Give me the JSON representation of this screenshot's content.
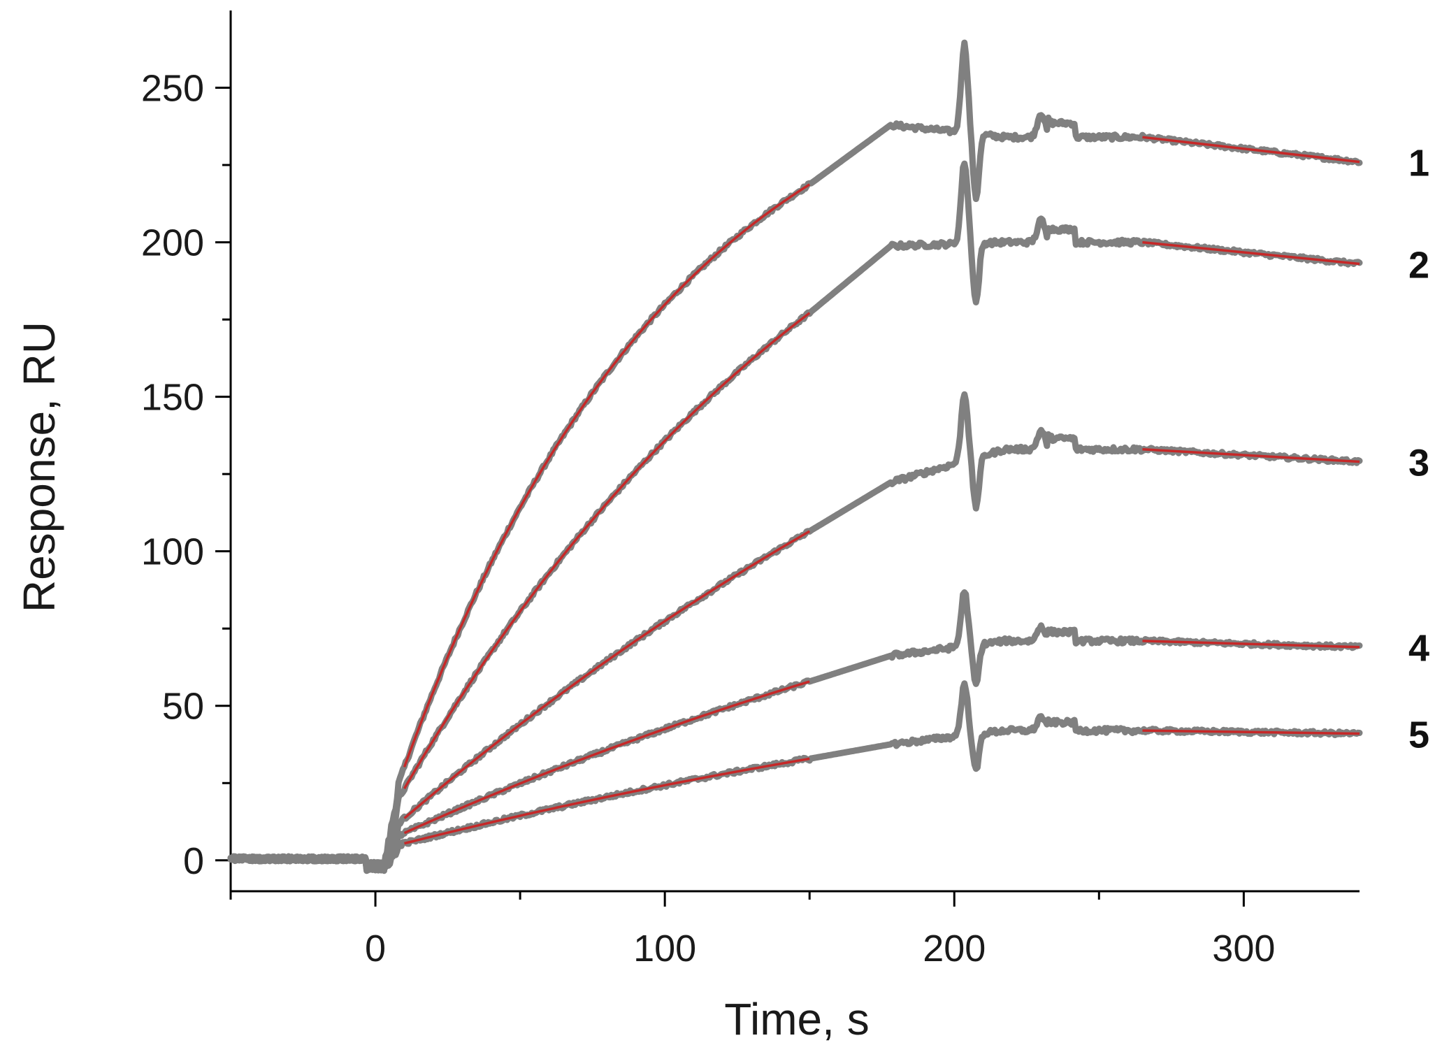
{
  "chart_data": {
    "type": "line",
    "title": "",
    "xlabel": "Time, s",
    "ylabel": "Response, RU",
    "xlim": [
      -50,
      340
    ],
    "ylim": [
      -10,
      275
    ],
    "x_ticks_major": [
      0,
      100,
      200,
      300
    ],
    "x_ticks_minor": [
      -50,
      50,
      150,
      250
    ],
    "y_ticks_major": [
      0,
      50,
      100,
      150,
      200,
      250
    ],
    "y_ticks_minor": [
      25,
      75,
      125,
      175,
      225
    ],
    "grid": false,
    "legend": "none",
    "colors": {
      "data": "#808080",
      "fit": "#c62828",
      "axis": "#000000"
    },
    "injection": {
      "start": 8,
      "association_end": 150,
      "peak_time": 178,
      "dissociation_fit_start": 265,
      "end": 340
    },
    "series": [
      {
        "name": "1",
        "label": "1",
        "start_value": 25,
        "assoc_rmax": 275,
        "assoc_k": 0.0105,
        "level_at_dissociation_start": 234,
        "end_value": 226
      },
      {
        "name": "2",
        "label": "2",
        "start_value": 20,
        "assoc_rmax": 300,
        "assoc_k": 0.0058,
        "level_at_dissociation_start": 200,
        "end_value": 193
      },
      {
        "name": "3",
        "label": "3",
        "start_value": 12,
        "assoc_rmax": 300,
        "assoc_k": 0.0028,
        "level_at_dissociation_start": 133,
        "end_value": 129
      },
      {
        "name": "4",
        "label": "4",
        "start_value": 8,
        "assoc_rmax": 160,
        "assoc_k": 0.0028,
        "level_at_dissociation_start": 71,
        "end_value": 69
      },
      {
        "name": "5",
        "label": "5",
        "start_value": 5,
        "assoc_rmax": 90,
        "assoc_k": 0.0028,
        "level_at_dissociation_start": 42,
        "end_value": 41
      }
    ]
  }
}
